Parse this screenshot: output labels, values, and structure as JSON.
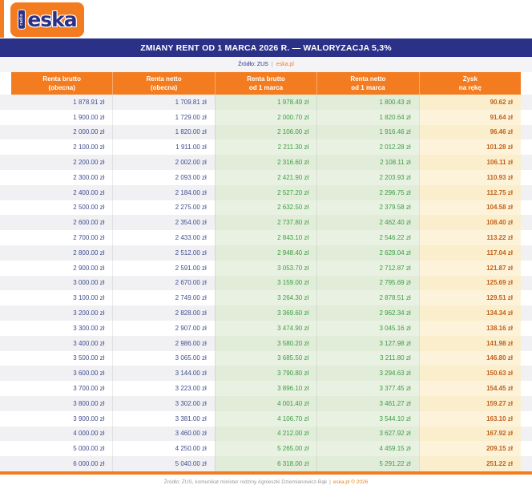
{
  "brand": {
    "logo_text": "eska",
    "logo_sub": "radio"
  },
  "header": {
    "title": "ZMIANY RENT OD 1 MARCA 2026 R. — WALORYZACJA 5,3%",
    "source_label": "Źródło: ZUS",
    "source_separator": "|",
    "source_brand": "eska.pl"
  },
  "table": {
    "columns": [
      {
        "line1": "Renta brutto",
        "line2": "(obecna)"
      },
      {
        "line1": "Renta netto",
        "line2": "(obecna)"
      },
      {
        "line1": "Renta brutto",
        "line2": "od 1 marca"
      },
      {
        "line1": "Renta netto",
        "line2": "od 1 marca"
      },
      {
        "line1": "Zysk",
        "line2": "na rękę"
      }
    ]
  },
  "chart_data": {
    "type": "table",
    "title": "ZMIANY RENT OD 1 MARCA 2026 R. — WALORYZACJA 5,3%",
    "source": "Źródło: ZUS | eska.pl",
    "columns": [
      "Renta brutto (obecna)",
      "Renta netto (obecna)",
      "Renta brutto od 1 marca",
      "Renta netto od 1 marca",
      "Zysk na rękę"
    ],
    "rows": [
      [
        "1 878.91 zł",
        "1 709.81 zł",
        "1 978.49 zł",
        "1 800.43 zł",
        "90.62 zł"
      ],
      [
        "1 900.00 zł",
        "1 729.00 zł",
        "2 000.70 zł",
        "1 820.64 zł",
        "91.64 zł"
      ],
      [
        "2 000.00 zł",
        "1 820.00 zł",
        "2 106.00 zł",
        "1 916.46 zł",
        "96.46 zł"
      ],
      [
        "2 100.00 zł",
        "1 911.00 zł",
        "2 211.30 zł",
        "2 012.28 zł",
        "101.28 zł"
      ],
      [
        "2 200.00 zł",
        "2 002.00 zł",
        "2 316.60 zł",
        "2 108.11 zł",
        "106.11 zł"
      ],
      [
        "2 300.00 zł",
        "2 093.00 zł",
        "2 421.90 zł",
        "2 203.93 zł",
        "110.93 zł"
      ],
      [
        "2 400.00 zł",
        "2 184.00 zł",
        "2 527.20 zł",
        "2 296.75 zł",
        "112.75 zł"
      ],
      [
        "2 500.00 zł",
        "2 275.00 zł",
        "2 632.50 zł",
        "2 379.58 zł",
        "104.58 zł"
      ],
      [
        "2 600.00 zł",
        "2 354.00 zł",
        "2 737.80 zł",
        "2 462.40 zł",
        "108.40 zł"
      ],
      [
        "2 700.00 zł",
        "2 433.00 zł",
        "2 843.10 zł",
        "2 546.22 zł",
        "113.22 zł"
      ],
      [
        "2 800.00 zł",
        "2 512.00 zł",
        "2 948.40 zł",
        "2 629.04 zł",
        "117.04 zł"
      ],
      [
        "2 900.00 zł",
        "2 591.00 zł",
        "3 053.70 zł",
        "2 712.87 zł",
        "121.87 zł"
      ],
      [
        "3 000.00 zł",
        "2 670.00 zł",
        "3 159.00 zł",
        "2 795.69 zł",
        "125.69 zł"
      ],
      [
        "3 100.00 zł",
        "2 749.00 zł",
        "3 264.30 zł",
        "2 878.51 zł",
        "129.51 zł"
      ],
      [
        "3 200.00 zł",
        "2 828.00 zł",
        "3 369.60 zł",
        "2 962.34 zł",
        "134.34 zł"
      ],
      [
        "3 300.00 zł",
        "2 907.00 zł",
        "3 474.90 zł",
        "3 045.16 zł",
        "138.16 zł"
      ],
      [
        "3 400.00 zł",
        "2 986.00 zł",
        "3 580.20 zł",
        "3 127.98 zł",
        "141.98 zł"
      ],
      [
        "3 500.00 zł",
        "3 065.00 zł",
        "3 685.50 zł",
        "3 211.80 zł",
        "146.80 zł"
      ],
      [
        "3 600.00 zł",
        "3 144.00 zł",
        "3 790.80 zł",
        "3 294.63 zł",
        "150.63 zł"
      ],
      [
        "3 700.00 zł",
        "3 223.00 zł",
        "3 896.10 zł",
        "3 377.45 zł",
        "154.45 zł"
      ],
      [
        "3 800.00 zł",
        "3 302.00 zł",
        "4 001.40 zł",
        "3 461.27 zł",
        "159.27 zł"
      ],
      [
        "3 900.00 zł",
        "3 381.00 zł",
        "4 106.70 zł",
        "3 544.10 zł",
        "163.10 zł"
      ],
      [
        "4 000.00 zł",
        "3 460.00 zł",
        "4 212.00 zł",
        "3 627.92 zł",
        "167.92 zł"
      ],
      [
        "5 000.00 zł",
        "4 250.00 zł",
        "5 265.00 zł",
        "4 459.15 zł",
        "209.15 zł"
      ],
      [
        "6 000.00 zł",
        "5 040.00 zł",
        "6 318.00 zł",
        "5 291.22 zł",
        "251.22 zł"
      ]
    ]
  },
  "footer": {
    "source": "Źródło: ZUS, komunikat minister rodziny Agnieszki Dziemianowicz-Bąk",
    "separator": "|",
    "brand": "eska.pl © 2026"
  },
  "colors": {
    "orange": "#f47c20",
    "navy": "#2b3187",
    "current_text": "#414f8e",
    "new_text": "#3c9d43",
    "gain_text": "#c2611b",
    "new_bg": "#e5efdd",
    "gain_bg": "#fcf0d3"
  }
}
